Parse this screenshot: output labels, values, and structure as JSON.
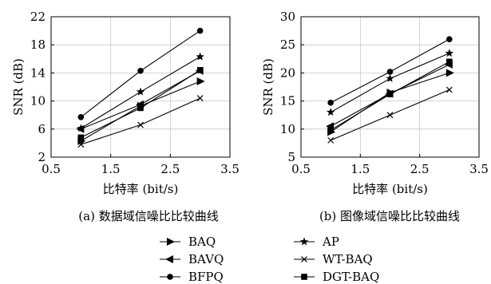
{
  "chart_data": [
    {
      "type": "line",
      "caption": "(a) 数据域信噪比比较曲线",
      "xlabel": "比特率 (bit/s)",
      "ylabel": "SNR (dB)",
      "xlim": [
        0.5,
        3.5
      ],
      "ylim": [
        2,
        22
      ],
      "xticks": [
        0.5,
        1.5,
        2.5,
        3.5
      ],
      "yticks": [
        2,
        6,
        10,
        14,
        18,
        22
      ],
      "x_tick_labels": [
        "0.5",
        "1.5",
        "2.5",
        "3.5"
      ],
      "y_tick_labels": [
        "2",
        "6",
        "10",
        "14",
        "18",
        "22"
      ],
      "grid": true,
      "x": [
        1,
        2,
        3
      ],
      "series": [
        {
          "name": "BAQ",
          "marker": "triangle-right",
          "values": [
            4.3,
            9.3,
            12.8
          ]
        },
        {
          "name": "BAVQ",
          "marker": "triangle-left",
          "values": [
            6.0,
            9.5,
            14.3
          ]
        },
        {
          "name": "BFPQ",
          "marker": "circle",
          "values": [
            7.7,
            14.3,
            20.0
          ]
        },
        {
          "name": "AP",
          "marker": "star",
          "values": [
            6.1,
            11.3,
            16.3
          ]
        },
        {
          "name": "WT-BAQ",
          "marker": "x",
          "values": [
            3.8,
            6.6,
            10.4
          ]
        },
        {
          "name": "DGT-BAQ",
          "marker": "square",
          "values": [
            4.8,
            9.0,
            14.4
          ]
        }
      ]
    },
    {
      "type": "line",
      "caption": "(b) 图像域信噪比比较曲线",
      "xlabel": "比特率 (bit/s)",
      "ylabel": "SNR (dB)",
      "xlim": [
        0.5,
        3.5
      ],
      "ylim": [
        5,
        30
      ],
      "xticks": [
        0.5,
        1.5,
        2.5,
        3.5
      ],
      "yticks": [
        5,
        10,
        15,
        20,
        25,
        30
      ],
      "x_tick_labels": [
        "0.5",
        "1.5",
        "2.5",
        "3.5"
      ],
      "y_tick_labels": [
        "5",
        "10",
        "15",
        "20",
        "25",
        "30"
      ],
      "grid": true,
      "x": [
        1,
        2,
        3
      ],
      "series": [
        {
          "name": "BAQ",
          "marker": "triangle-right",
          "values": [
            9.5,
            16.5,
            20.0
          ]
        },
        {
          "name": "BAVQ",
          "marker": "triangle-left",
          "values": [
            10.5,
            16.3,
            21.5
          ]
        },
        {
          "name": "BFPQ",
          "marker": "circle",
          "values": [
            14.7,
            20.2,
            26.0
          ]
        },
        {
          "name": "AP",
          "marker": "star",
          "values": [
            13.0,
            19.0,
            23.5
          ]
        },
        {
          "name": "WT-BAQ",
          "marker": "x",
          "values": [
            8.0,
            12.5,
            17.0
          ]
        },
        {
          "name": "DGT-BAQ",
          "marker": "square",
          "values": [
            9.8,
            16.2,
            22.0
          ]
        }
      ]
    }
  ],
  "legend": {
    "placement": "bottom",
    "entries": [
      {
        "label": "BAQ",
        "marker": "triangle-right"
      },
      {
        "label": "AP",
        "marker": "star"
      },
      {
        "label": "BAVQ",
        "marker": "triangle-left"
      },
      {
        "label": "WT-BAQ",
        "marker": "x"
      },
      {
        "label": "BFPQ",
        "marker": "circle"
      },
      {
        "label": "DGT-BAQ",
        "marker": "square"
      }
    ]
  }
}
